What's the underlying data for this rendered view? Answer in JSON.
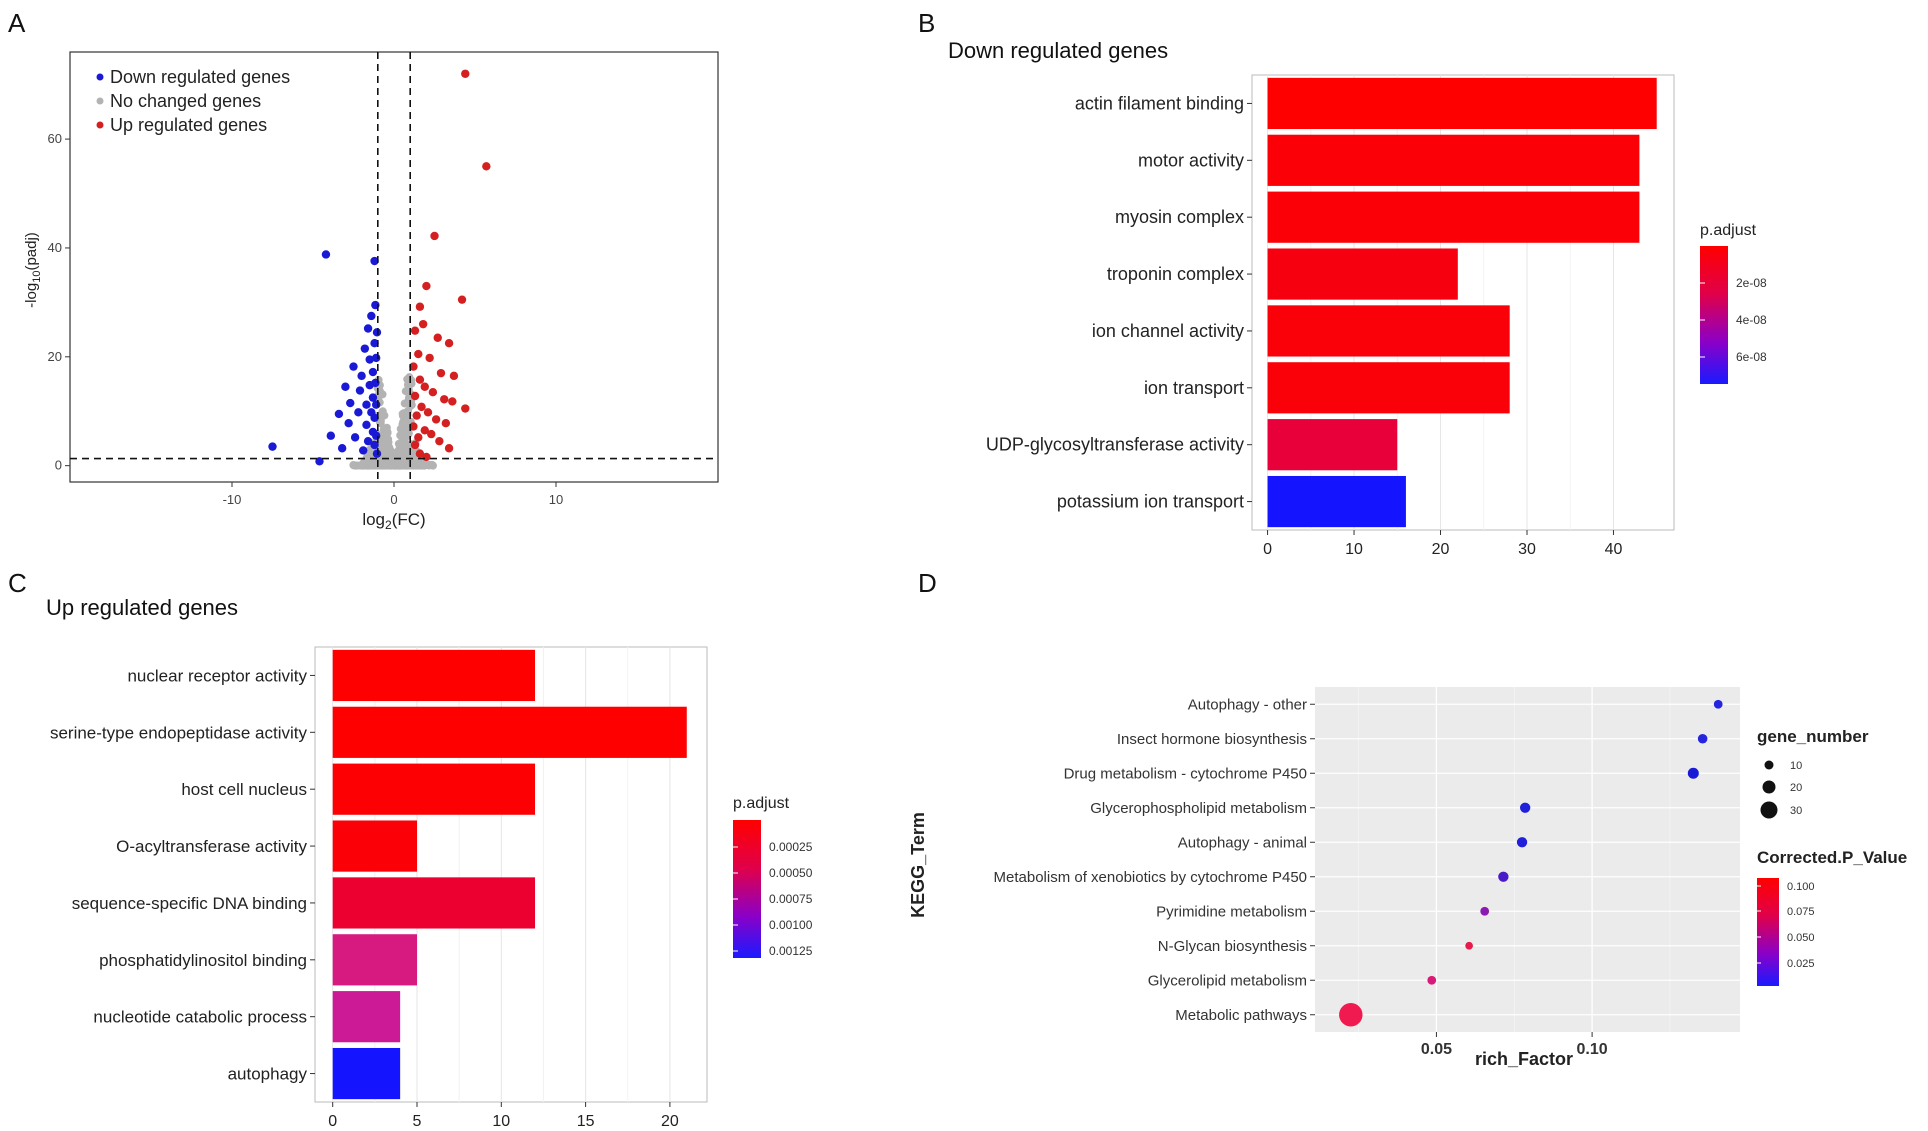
{
  "chart_data": [
    {
      "panel": "A",
      "type": "scatter",
      "title": "",
      "xlabel": "log2(FC)",
      "ylabel": "-log10(padj)",
      "xlim": [
        -20,
        20
      ],
      "ylim": [
        -3,
        76
      ],
      "xticks": [
        -10,
        0,
        10
      ],
      "xtick_labels": [
        "-10",
        "0",
        "10"
      ],
      "yticks": [
        0,
        20,
        40,
        60
      ],
      "ytick_labels": [
        "0",
        "20",
        "40",
        "60"
      ],
      "vlines": [
        -1,
        1
      ],
      "hline": 1.3,
      "legend": [
        {
          "label": "Down regulated genes",
          "color": "#1a1ad6"
        },
        {
          "label": "No changed genes",
          "color": "#b3b3b3"
        },
        {
          "label": "Up regulated genes",
          "color": "#d42020"
        }
      ],
      "points": {
        "down": [
          [
            -7.5,
            3.5
          ],
          [
            -4.2,
            38.8
          ],
          [
            -1.2,
            37.6
          ],
          [
            -4.6,
            0.8
          ],
          [
            -3.9,
            5.5
          ],
          [
            -3.4,
            9.5
          ],
          [
            -3.2,
            3.2
          ],
          [
            -3.0,
            14.5
          ],
          [
            -2.8,
            7.8
          ],
          [
            -2.7,
            11.5
          ],
          [
            -2.5,
            18.2
          ],
          [
            -2.4,
            5.2
          ],
          [
            -2.2,
            9.8
          ],
          [
            -2.1,
            13.8
          ],
          [
            -2.0,
            16.5
          ],
          [
            -1.9,
            2.8
          ],
          [
            -1.8,
            21.5
          ],
          [
            -1.7,
            7.5
          ],
          [
            -1.7,
            11.2
          ],
          [
            -1.6,
            25.2
          ],
          [
            -1.6,
            4.5
          ],
          [
            -1.5,
            14.8
          ],
          [
            -1.5,
            19.5
          ],
          [
            -1.4,
            9.8
          ],
          [
            -1.4,
            27.5
          ],
          [
            -1.3,
            6.2
          ],
          [
            -1.3,
            12.5
          ],
          [
            -1.3,
            17.2
          ],
          [
            -1.2,
            22.5
          ],
          [
            -1.2,
            3.8
          ],
          [
            -1.2,
            8.8
          ],
          [
            -1.15,
            29.5
          ],
          [
            -1.15,
            15.2
          ],
          [
            -1.1,
            11.2
          ],
          [
            -1.1,
            5.5
          ],
          [
            -1.1,
            19.8
          ],
          [
            -1.05,
            24.5
          ],
          [
            -1.05,
            2.2
          ]
        ],
        "up": [
          [
            4.4,
            72.0
          ],
          [
            5.7,
            55.0
          ],
          [
            2.5,
            42.2
          ],
          [
            2.0,
            33.0
          ],
          [
            4.2,
            30.5
          ],
          [
            1.6,
            29.2
          ],
          [
            1.8,
            26.0
          ],
          [
            1.3,
            24.8
          ],
          [
            2.7,
            23.5
          ],
          [
            3.4,
            22.5
          ],
          [
            1.5,
            20.5
          ],
          [
            2.2,
            19.8
          ],
          [
            1.2,
            18.2
          ],
          [
            2.9,
            17.0
          ],
          [
            3.7,
            16.5
          ],
          [
            1.6,
            15.8
          ],
          [
            1.9,
            14.5
          ],
          [
            2.4,
            13.5
          ],
          [
            1.3,
            12.8
          ],
          [
            3.1,
            12.2
          ],
          [
            3.6,
            11.8
          ],
          [
            4.4,
            10.5
          ],
          [
            1.7,
            10.8
          ],
          [
            2.1,
            9.8
          ],
          [
            1.4,
            9.2
          ],
          [
            2.6,
            8.5
          ],
          [
            3.2,
            7.8
          ],
          [
            1.2,
            7.2
          ],
          [
            1.9,
            6.5
          ],
          [
            2.3,
            5.8
          ],
          [
            1.5,
            5.2
          ],
          [
            2.8,
            4.5
          ],
          [
            1.3,
            3.8
          ],
          [
            3.4,
            3.2
          ],
          [
            1.6,
            2.2
          ],
          [
            2.0,
            1.6
          ]
        ],
        "none": []
      }
    },
    {
      "panel": "B",
      "type": "bar",
      "orientation": "horizontal",
      "title": "Down regulated genes",
      "categories": [
        "actin filament binding",
        "motor activity",
        "myosin complex",
        "troponin complex",
        "ion channel activity",
        "ion transport",
        "UDP-glycosyltransferase activity",
        "potassium ion transport"
      ],
      "values": [
        45,
        43,
        43,
        22,
        28,
        28,
        15,
        16
      ],
      "colors": [
        "#ff0000",
        "#fb0006",
        "#fb0006",
        "#f60010",
        "#fa0008",
        "#fa0008",
        "#e8003a",
        "#1414ff"
      ],
      "xticks": [
        0,
        10,
        20,
        30,
        40
      ],
      "xlim": [
        -1.8,
        47
      ],
      "legend": {
        "title": "p.adjust",
        "labels": [
          "2e-08",
          "4e-08",
          "6e-08"
        ],
        "gradient": [
          "#ff0000",
          "#e0004a",
          "#8a00c8",
          "#1a1aff"
        ]
      }
    },
    {
      "panel": "C",
      "type": "bar",
      "orientation": "horizontal",
      "title": "Up regulated genes",
      "categories": [
        "nuclear receptor activity",
        "serine-type endopeptidase activity",
        "host cell nucleus",
        "O-acyltransferase activity",
        "sequence-specific DNA binding",
        "phosphatidylinositol binding",
        "nucleotide catabolic process",
        "autophagy"
      ],
      "values": [
        12,
        21,
        12,
        5,
        12,
        5,
        4,
        4
      ],
      "colors": [
        "#ff0000",
        "#ff0000",
        "#fd0004",
        "#fb0006",
        "#ec0030",
        "#d61a80",
        "#cc1a96",
        "#1414ff"
      ],
      "xticks": [
        0,
        5,
        10,
        15,
        20
      ],
      "xlim": [
        -1.05,
        22.2
      ],
      "legend": {
        "title": "p.adjust",
        "labels": [
          "0.00025",
          "0.00050",
          "0.00075",
          "0.00100",
          "0.00125"
        ],
        "gradient": [
          "#ff0000",
          "#e0004a",
          "#8a00c8",
          "#1a1aff"
        ]
      }
    },
    {
      "panel": "D",
      "type": "scatter",
      "title": "",
      "xlabel": "rich_Factor",
      "ylabel": "KEGG_Term",
      "categories": [
        "Autophagy - other",
        "Insect hormone biosynthesis",
        "Drug metabolism - cytochrome P450",
        "Glycerophospholipid metabolism",
        "Autophagy - animal",
        "Metabolism of xenobiotics by cytochrome P450",
        "Pyrimidine metabolism",
        "N-Glycan biosynthesis",
        "Glycerolipid metabolism",
        "Metabolic pathways"
      ],
      "x": [
        0.1405,
        0.1355,
        0.1325,
        0.0785,
        0.0775,
        0.0715,
        0.0655,
        0.0605,
        0.0485,
        0.0225
      ],
      "gene_number": [
        3,
        4,
        6,
        5,
        5,
        5,
        3,
        2,
        3,
        40
      ],
      "colors": [
        "#2525e0",
        "#2525e0",
        "#1a1ad6",
        "#2020dc",
        "#2020dc",
        "#4a1ac8",
        "#8a1ab0",
        "#e81a4a",
        "#d81a78",
        "#f01a50"
      ],
      "xticks": [
        0.05,
        0.1
      ],
      "xtick_labels": [
        "0.05",
        "0.10"
      ],
      "xlim": [
        0.011,
        0.1475
      ],
      "legend_size": {
        "title": "gene_number",
        "labels": [
          "10",
          "20",
          "30"
        ]
      },
      "legend_color": {
        "title": "Corrected.P_Value",
        "labels": [
          "0.100",
          "0.075",
          "0.050",
          "0.025"
        ],
        "gradient": [
          "#ff0000",
          "#e0004a",
          "#8a00c8",
          "#1a1aff"
        ]
      }
    }
  ],
  "panel_labels": [
    "A",
    "B",
    "C",
    "D"
  ]
}
